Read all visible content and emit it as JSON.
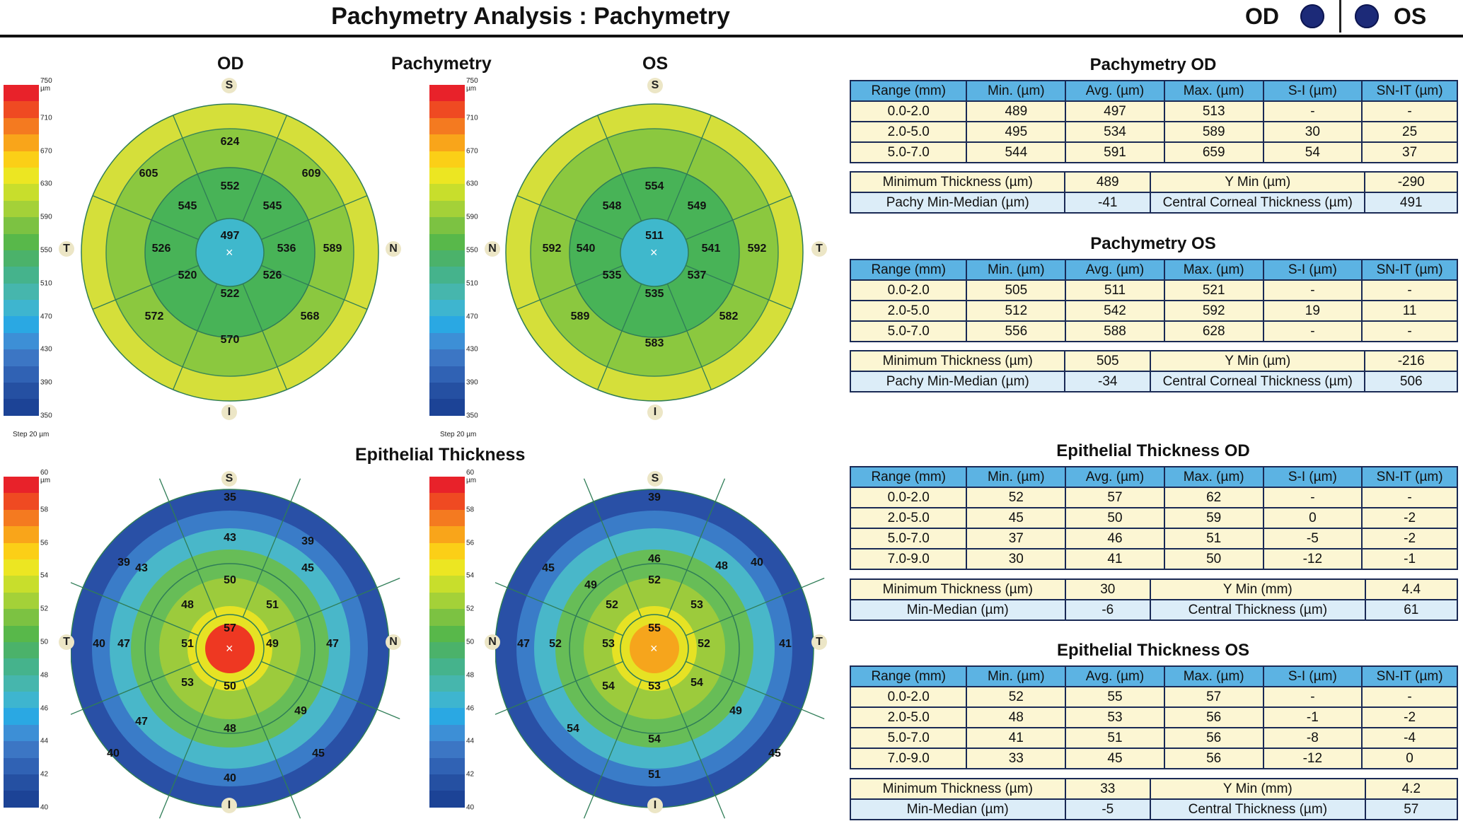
{
  "header": {
    "title": "Pachymetry Analysis : Pachymetry",
    "od": "OD",
    "os": "OS",
    "eye_color": "#1c2a78"
  },
  "labels": {
    "od": "OD",
    "os": "OS",
    "pachy": "Pachymetry",
    "epi": "Epithelial Thickness",
    "S": "S",
    "I": "I",
    "T": "T",
    "N": "N",
    "step": "Step 20 µm"
  },
  "scales": {
    "pachy": [
      "750 µm",
      "710",
      "670",
      "630",
      "590",
      "550",
      "510",
      "470",
      "430",
      "390",
      "350"
    ],
    "epi": [
      "60 µm",
      "58",
      "56",
      "54",
      "52",
      "50",
      "48",
      "46",
      "44",
      "42",
      "40"
    ]
  },
  "maps": {
    "pachy_od": [
      "497",
      "552",
      "545",
      "545",
      "526",
      "536",
      "522",
      "520",
      "526",
      "624",
      "605",
      "609",
      "589",
      "568",
      "570",
      "572"
    ],
    "pachy_os": [
      "511",
      "554",
      "548",
      "549",
      "540",
      "541",
      "535",
      "535",
      "537",
      "592",
      "592",
      "589",
      "582",
      "583"
    ],
    "epi_od": [
      "57",
      "50",
      "48",
      "51",
      "49",
      "50",
      "51",
      "53",
      "48",
      "43",
      "45",
      "47",
      "40",
      "40",
      "39",
      "39",
      "43",
      "35",
      "47",
      "49",
      "45",
      "47",
      "40"
    ],
    "epi_os": [
      "55",
      "52",
      "52",
      "53",
      "52",
      "53",
      "52",
      "54",
      "54",
      "54",
      "53",
      "49",
      "46",
      "48",
      "45",
      "49",
      "47",
      "40",
      "39",
      "54",
      "51",
      "41",
      "45"
    ]
  },
  "tables": {
    "pachy_od": {
      "title": "Pachymetry OD",
      "headers": [
        "Range (mm)",
        "Min. (µm)",
        "Avg. (µm)",
        "Max. (µm)",
        "S-I (µm)",
        "SN-IT (µm)"
      ],
      "rows": [
        [
          "0.0-2.0",
          "489",
          "497",
          "513",
          "-",
          "-"
        ],
        [
          "2.0-5.0",
          "495",
          "534",
          "589",
          "30",
          "25"
        ],
        [
          "5.0-7.0",
          "544",
          "591",
          "659",
          "54",
          "37"
        ]
      ],
      "summary": [
        [
          "Minimum Thickness (µm)",
          "489",
          "Y Min (µm)",
          "-290"
        ],
        [
          "Pachy Min-Median (µm)",
          "-41",
          "Central Corneal Thickness (µm)",
          "491"
        ]
      ]
    },
    "pachy_os": {
      "title": "Pachymetry OS",
      "headers": [
        "Range (mm)",
        "Min. (µm)",
        "Avg. (µm)",
        "Max. (µm)",
        "S-I (µm)",
        "SN-IT (µm)"
      ],
      "rows": [
        [
          "0.0-2.0",
          "505",
          "511",
          "521",
          "-",
          "-"
        ],
        [
          "2.0-5.0",
          "512",
          "542",
          "592",
          "19",
          "11"
        ],
        [
          "5.0-7.0",
          "556",
          "588",
          "628",
          "-",
          "-"
        ]
      ],
      "summary": [
        [
          "Minimum Thickness (µm)",
          "505",
          "Y Min (µm)",
          "-216"
        ],
        [
          "Pachy Min-Median (µm)",
          "-34",
          "Central Corneal Thickness (µm)",
          "506"
        ]
      ]
    },
    "epi_od": {
      "title": "Epithelial Thickness OD",
      "headers": [
        "Range (mm)",
        "Min. (µm)",
        "Avg. (µm)",
        "Max. (µm)",
        "S-I (µm)",
        "SN-IT (µm)"
      ],
      "rows": [
        [
          "0.0-2.0",
          "52",
          "57",
          "62",
          "-",
          "-"
        ],
        [
          "2.0-5.0",
          "45",
          "50",
          "59",
          "0",
          "-2"
        ],
        [
          "5.0-7.0",
          "37",
          "46",
          "51",
          "-5",
          "-2"
        ],
        [
          "7.0-9.0",
          "30",
          "41",
          "50",
          "-12",
          "-1"
        ]
      ],
      "summary": [
        [
          "Minimum Thickness (µm)",
          "30",
          "Y Min (mm)",
          "4.4"
        ],
        [
          "Min-Median (µm)",
          "-6",
          "Central Thickness (µm)",
          "61"
        ]
      ]
    },
    "epi_os": {
      "title": "Epithelial Thickness OS",
      "headers": [
        "Range (mm)",
        "Min. (µm)",
        "Avg. (µm)",
        "Max. (µm)",
        "S-I (µm)",
        "SN-IT (µm)"
      ],
      "rows": [
        [
          "0.0-2.0",
          "52",
          "55",
          "57",
          "-",
          "-"
        ],
        [
          "2.0-5.0",
          "48",
          "53",
          "56",
          "-1",
          "-2"
        ],
        [
          "5.0-7.0",
          "41",
          "51",
          "56",
          "-8",
          "-4"
        ],
        [
          "7.0-9.0",
          "33",
          "45",
          "56",
          "-12",
          "0"
        ]
      ],
      "summary": [
        [
          "Minimum Thickness (µm)",
          "33",
          "Y Min (mm)",
          "4.2"
        ],
        [
          "Min-Median (µm)",
          "-5",
          "Central Thickness (µm)",
          "57"
        ]
      ]
    }
  }
}
